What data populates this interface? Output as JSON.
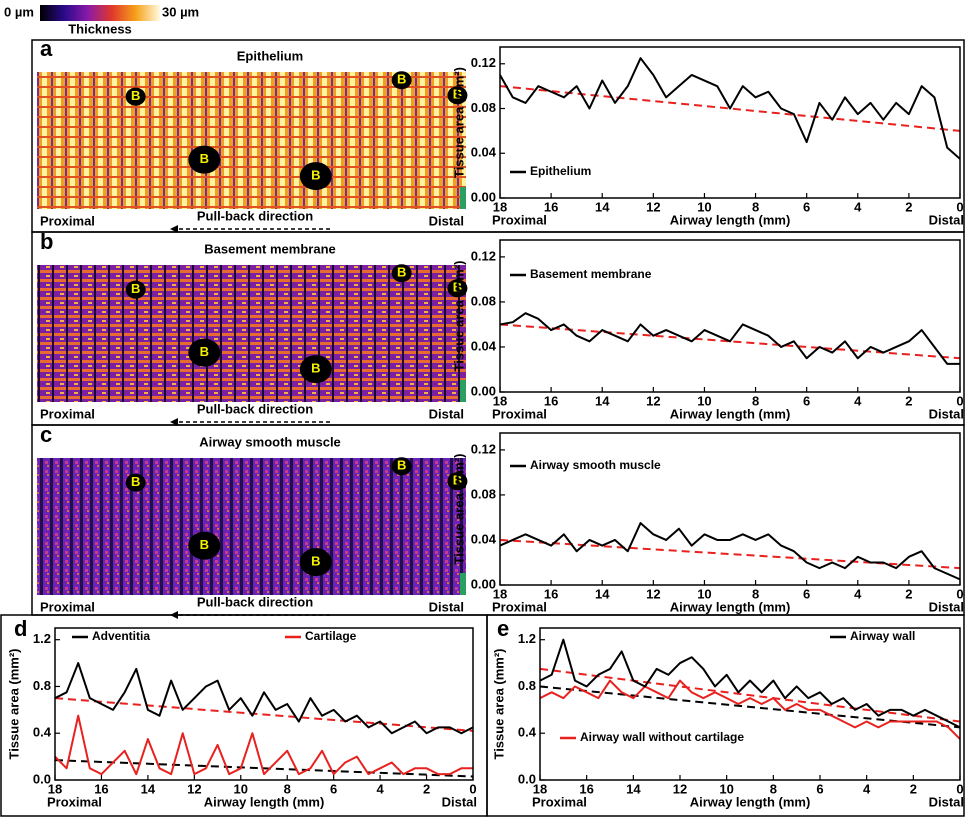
{
  "colorbar": {
    "min_label": "0 µm",
    "max_label": "30 µm",
    "title": "Thickness"
  },
  "panels": [
    {
      "letter": "a",
      "title": "Epithelium",
      "b_labels": [
        "B",
        "B",
        "B",
        "B",
        "B"
      ],
      "proximal": "Proximal",
      "distal": "Distal",
      "direction": "Pull-back direction"
    },
    {
      "letter": "b",
      "title": "Basement membrane",
      "b_labels": [
        "B",
        "B",
        "B",
        "B",
        "B"
      ],
      "proximal": "Proximal",
      "distal": "Distal",
      "direction": "Pull-back direction"
    },
    {
      "letter": "c",
      "title": "Airway smooth muscle",
      "b_labels": [
        "B",
        "B",
        "B",
        "B",
        "B"
      ],
      "proximal": "Proximal",
      "distal": "Distal",
      "direction": "Pull-back direction"
    }
  ],
  "chart_data": [
    {
      "type": "line",
      "xlabel": "Airway length (mm)",
      "ylabel": "Tissue area (mm²)",
      "x_start_label": "Proximal",
      "x_end_label": "Distal",
      "x": [
        18,
        17.5,
        17,
        16.5,
        16,
        15.5,
        15,
        14.5,
        14,
        13.5,
        13,
        12.5,
        12,
        11.5,
        11,
        10.5,
        10,
        9.5,
        9,
        8.5,
        8,
        7.5,
        7,
        6.5,
        6,
        5.5,
        5,
        4.5,
        4,
        3.5,
        3,
        2.5,
        2,
        1.5,
        1,
        0.5,
        0
      ],
      "xlim": [
        18,
        0
      ],
      "xticks": [
        18,
        16,
        14,
        12,
        10,
        8,
        6,
        4,
        2,
        0
      ],
      "ylim": [
        0,
        0.135
      ],
      "yticks": [
        {
          "value": 0,
          "label": "0.00"
        },
        {
          "value": 0.04,
          "label": "0.04"
        },
        {
          "value": 0.08,
          "label": "0.08"
        },
        {
          "value": 0.12,
          "label": "0.12"
        }
      ],
      "series": [
        {
          "name": "Epithelium",
          "color": "#000000",
          "values": [
            0.11,
            0.09,
            0.085,
            0.1,
            0.095,
            0.09,
            0.1,
            0.08,
            0.105,
            0.085,
            0.1,
            0.125,
            0.11,
            0.09,
            0.1,
            0.11,
            0.105,
            0.1,
            0.08,
            0.1,
            0.09,
            0.095,
            0.08,
            0.075,
            0.05,
            0.085,
            0.07,
            0.09,
            0.075,
            0.085,
            0.07,
            0.085,
            0.075,
            0.1,
            0.09,
            0.045,
            0.035
          ]
        }
      ],
      "trend_lines": [
        {
          "color": "#e8211f",
          "x": [
            18,
            0
          ],
          "values": [
            0.1,
            0.06
          ]
        }
      ]
    },
    {
      "type": "line",
      "xlabel": "Airway length (mm)",
      "ylabel": "Tissue area (mm²)",
      "x_start_label": "Proximal",
      "x_end_label": "Distal",
      "x": [
        18,
        17.5,
        17,
        16.5,
        16,
        15.5,
        15,
        14.5,
        14,
        13.5,
        13,
        12.5,
        12,
        11.5,
        11,
        10.5,
        10,
        9.5,
        9,
        8.5,
        8,
        7.5,
        7,
        6.5,
        6,
        5.5,
        5,
        4.5,
        4,
        3.5,
        3,
        2.5,
        2,
        1.5,
        1,
        0.5,
        0
      ],
      "xlim": [
        18,
        0
      ],
      "xticks": [
        18,
        16,
        14,
        12,
        10,
        8,
        6,
        4,
        2,
        0
      ],
      "ylim": [
        0,
        0.135
      ],
      "yticks": [
        {
          "value": 0,
          "label": "0.00"
        },
        {
          "value": 0.04,
          "label": "0.04"
        },
        {
          "value": 0.08,
          "label": "0.08"
        },
        {
          "value": 0.12,
          "label": "0.12"
        }
      ],
      "series": [
        {
          "name": "Basement membrane",
          "color": "#000000",
          "values": [
            0.06,
            0.062,
            0.07,
            0.065,
            0.055,
            0.06,
            0.05,
            0.045,
            0.055,
            0.05,
            0.045,
            0.06,
            0.05,
            0.055,
            0.05,
            0.045,
            0.055,
            0.05,
            0.045,
            0.06,
            0.055,
            0.05,
            0.04,
            0.045,
            0.03,
            0.04,
            0.035,
            0.045,
            0.03,
            0.04,
            0.035,
            0.04,
            0.045,
            0.055,
            0.04,
            0.025,
            0.025
          ]
        }
      ],
      "trend_lines": [
        {
          "color": "#e8211f",
          "x": [
            18,
            0
          ],
          "values": [
            0.06,
            0.03
          ]
        }
      ]
    },
    {
      "type": "line",
      "xlabel": "Airway length (mm)",
      "ylabel": "Tissue area (mm²)",
      "x_start_label": "Proximal",
      "x_end_label": "Distal",
      "x": [
        18,
        17.5,
        17,
        16.5,
        16,
        15.5,
        15,
        14.5,
        14,
        13.5,
        13,
        12.5,
        12,
        11.5,
        11,
        10.5,
        10,
        9.5,
        9,
        8.5,
        8,
        7.5,
        7,
        6.5,
        6,
        5.5,
        5,
        4.5,
        4,
        3.5,
        3,
        2.5,
        2,
        1.5,
        1,
        0.5,
        0
      ],
      "xlim": [
        18,
        0
      ],
      "xticks": [
        18,
        16,
        14,
        12,
        10,
        8,
        6,
        4,
        2,
        0
      ],
      "ylim": [
        0,
        0.135
      ],
      "yticks": [
        {
          "value": 0,
          "label": "0.00"
        },
        {
          "value": 0.04,
          "label": "0.04"
        },
        {
          "value": 0.08,
          "label": "0.08"
        },
        {
          "value": 0.12,
          "label": "0.12"
        }
      ],
      "series": [
        {
          "name": "Airway smooth muscle",
          "color": "#000000",
          "values": [
            0.035,
            0.04,
            0.045,
            0.04,
            0.035,
            0.045,
            0.03,
            0.04,
            0.035,
            0.04,
            0.03,
            0.055,
            0.045,
            0.04,
            0.05,
            0.035,
            0.045,
            0.04,
            0.04,
            0.045,
            0.04,
            0.045,
            0.035,
            0.03,
            0.02,
            0.015,
            0.02,
            0.015,
            0.025,
            0.02,
            0.02,
            0.015,
            0.025,
            0.03,
            0.015,
            0.01,
            0.005
          ]
        }
      ],
      "trend_lines": [
        {
          "color": "#e8211f",
          "x": [
            18,
            0
          ],
          "values": [
            0.04,
            0.015
          ]
        }
      ]
    },
    {
      "type": "line",
      "panel_label": "d",
      "xlabel": "Airway length (mm)",
      "ylabel": "Tissue area (mm²)",
      "x_start_label": "Proximal",
      "x_end_label": "Distal",
      "x": [
        18,
        17.5,
        17,
        16.5,
        16,
        15.5,
        15,
        14.5,
        14,
        13.5,
        13,
        12.5,
        12,
        11.5,
        11,
        10.5,
        10,
        9.5,
        9,
        8.5,
        8,
        7.5,
        7,
        6.5,
        6,
        5.5,
        5,
        4.5,
        4,
        3.5,
        3,
        2.5,
        2,
        1.5,
        1,
        0.5,
        0
      ],
      "xlim": [
        18,
        0
      ],
      "xticks": [
        18,
        16,
        14,
        12,
        10,
        8,
        6,
        4,
        2,
        0
      ],
      "ylim": [
        0,
        1.3
      ],
      "yticks": [
        {
          "value": 0,
          "label": "0.0"
        },
        0.4,
        0.8,
        1.2
      ],
      "series": [
        {
          "name": "Adventitia",
          "color": "#000000",
          "values": [
            0.7,
            0.75,
            1.0,
            0.7,
            0.65,
            0.6,
            0.75,
            0.95,
            0.6,
            0.55,
            0.85,
            0.6,
            0.7,
            0.8,
            0.85,
            0.6,
            0.7,
            0.55,
            0.75,
            0.6,
            0.65,
            0.5,
            0.7,
            0.55,
            0.6,
            0.5,
            0.55,
            0.45,
            0.5,
            0.4,
            0.45,
            0.5,
            0.4,
            0.45,
            0.45,
            0.4,
            0.45
          ]
        },
        {
          "name": "Cartilage",
          "color": "#e8211f",
          "values": [
            0.2,
            0.1,
            0.55,
            0.1,
            0.05,
            0.15,
            0.25,
            0.05,
            0.35,
            0.1,
            0.05,
            0.4,
            0.05,
            0.1,
            0.3,
            0.05,
            0.1,
            0.4,
            0.05,
            0.15,
            0.25,
            0.05,
            0.1,
            0.25,
            0.05,
            0.15,
            0.2,
            0.05,
            0.1,
            0.15,
            0.05,
            0.1,
            0.1,
            0.05,
            0.05,
            0.1,
            0.1
          ]
        }
      ],
      "trend_lines": [
        {
          "color": "#e8211f",
          "x": [
            18,
            0
          ],
          "values": [
            0.7,
            0.42
          ]
        },
        {
          "color": "#000000",
          "x": [
            18,
            0
          ],
          "values": [
            0.17,
            0.03
          ]
        }
      ]
    },
    {
      "type": "line",
      "panel_label": "e",
      "xlabel": "Airway length (mm)",
      "ylabel": "Tissue area (mm²)",
      "x_start_label": "Proximal",
      "x_end_label": "Distal",
      "x": [
        18,
        17.5,
        17,
        16.5,
        16,
        15.5,
        15,
        14.5,
        14,
        13.5,
        13,
        12.5,
        12,
        11.5,
        11,
        10.5,
        10,
        9.5,
        9,
        8.5,
        8,
        7.5,
        7,
        6.5,
        6,
        5.5,
        5,
        4.5,
        4,
        3.5,
        3,
        2.5,
        2,
        1.5,
        1,
        0.5,
        0
      ],
      "xlim": [
        18,
        0
      ],
      "xticks": [
        18,
        16,
        14,
        12,
        10,
        8,
        6,
        4,
        2,
        0
      ],
      "ylim": [
        0,
        1.3
      ],
      "yticks": [
        {
          "value": 0,
          "label": "0.0"
        },
        0.4,
        0.8,
        1.2
      ],
      "series": [
        {
          "name": "Airway wall",
          "color": "#000000",
          "values": [
            0.85,
            0.9,
            1.2,
            0.85,
            0.8,
            0.9,
            0.95,
            1.1,
            0.85,
            0.8,
            0.95,
            0.9,
            1.0,
            1.05,
            0.95,
            0.8,
            0.9,
            0.75,
            0.85,
            0.75,
            0.85,
            0.7,
            0.8,
            0.7,
            0.75,
            0.65,
            0.7,
            0.6,
            0.65,
            0.55,
            0.6,
            0.6,
            0.55,
            0.6,
            0.55,
            0.5,
            0.45
          ]
        },
        {
          "name": "Airway wall without cartilage",
          "color": "#e8211f",
          "values": [
            0.7,
            0.75,
            0.7,
            0.8,
            0.75,
            0.7,
            0.85,
            0.75,
            0.7,
            0.8,
            0.75,
            0.7,
            0.85,
            0.75,
            0.7,
            0.75,
            0.7,
            0.65,
            0.7,
            0.65,
            0.7,
            0.6,
            0.65,
            0.6,
            0.6,
            0.55,
            0.5,
            0.45,
            0.5,
            0.45,
            0.5,
            0.5,
            0.5,
            0.5,
            0.5,
            0.45,
            0.35
          ]
        }
      ],
      "trend_lines": [
        {
          "color": "#e8211f",
          "x": [
            18,
            0
          ],
          "values": [
            0.95,
            0.5
          ]
        },
        {
          "color": "#000000",
          "x": [
            18,
            0
          ],
          "values": [
            0.8,
            0.45
          ]
        }
      ]
    }
  ]
}
